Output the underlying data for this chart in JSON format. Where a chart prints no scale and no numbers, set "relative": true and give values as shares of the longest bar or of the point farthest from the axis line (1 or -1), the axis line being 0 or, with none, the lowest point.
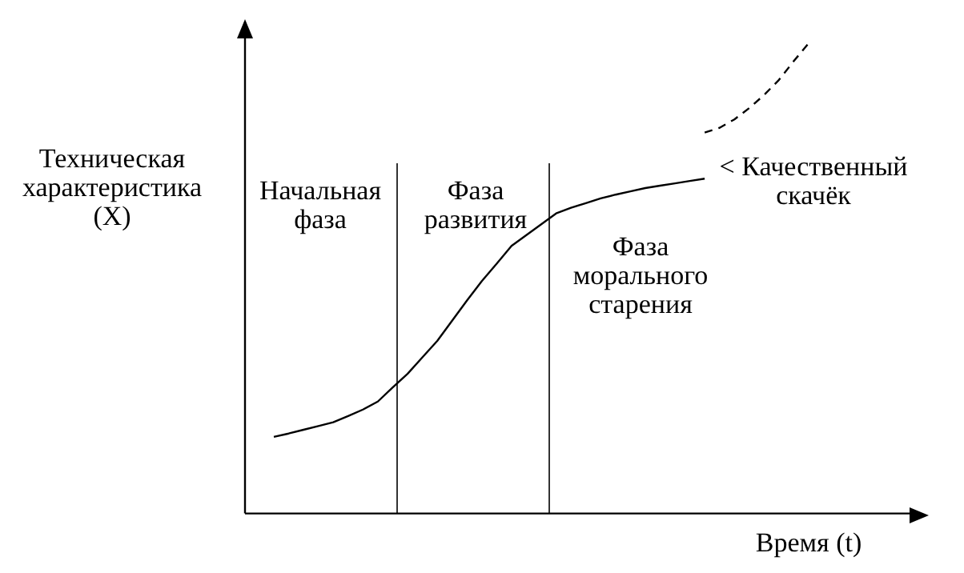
{
  "chart_data": {
    "type": "line",
    "relative": true,
    "xlabel": "Время (t)",
    "ylabel": "Техническая\nхарактеристика\n(X)",
    "categories": [
      null,
      null,
      null,
      null,
      null,
      null,
      null,
      null,
      null,
      null,
      null,
      null,
      null,
      null,
      null,
      null,
      null,
      null,
      null,
      null,
      null,
      null,
      null,
      null,
      null,
      null,
      null,
      null,
      null,
      null,
      null,
      null,
      null,
      null,
      null,
      null,
      null
    ],
    "grid": false,
    "legend": false,
    "marker": "none",
    "series": [
      {
        "color": "#000000",
        "line_style": "solid",
        "values": [
          0.163,
          0.17,
          0.178,
          0.186,
          0.194,
          0.207,
          0.221,
          0.238,
          0.268,
          0.297,
          0.332,
          0.367,
          0.41,
          0.453,
          0.494,
          0.531,
          0.569,
          0.592,
          0.615,
          0.638,
          0.65,
          0.66,
          0.67,
          0.678,
          0.685,
          0.692,
          0.697,
          0.702,
          0.707,
          0.712,
          null,
          null,
          null,
          null,
          null,
          null,
          null
        ]
      },
      {
        "color": "#000000",
        "line_style": "dashed",
        "values": [
          null,
          null,
          null,
          null,
          null,
          null,
          null,
          null,
          null,
          null,
          null,
          null,
          null,
          null,
          null,
          null,
          null,
          null,
          null,
          null,
          null,
          null,
          null,
          null,
          null,
          null,
          null,
          null,
          null,
          0.81,
          0.82,
          0.838,
          0.862,
          0.89,
          0.922,
          0.962,
          1
        ]
      }
    ],
    "annotations": [
      "Начальная\nфаза",
      "Фаза\nразвития",
      "Фаза\nморального\nстарения",
      "< Качественный\nскачёк"
    ]
  }
}
